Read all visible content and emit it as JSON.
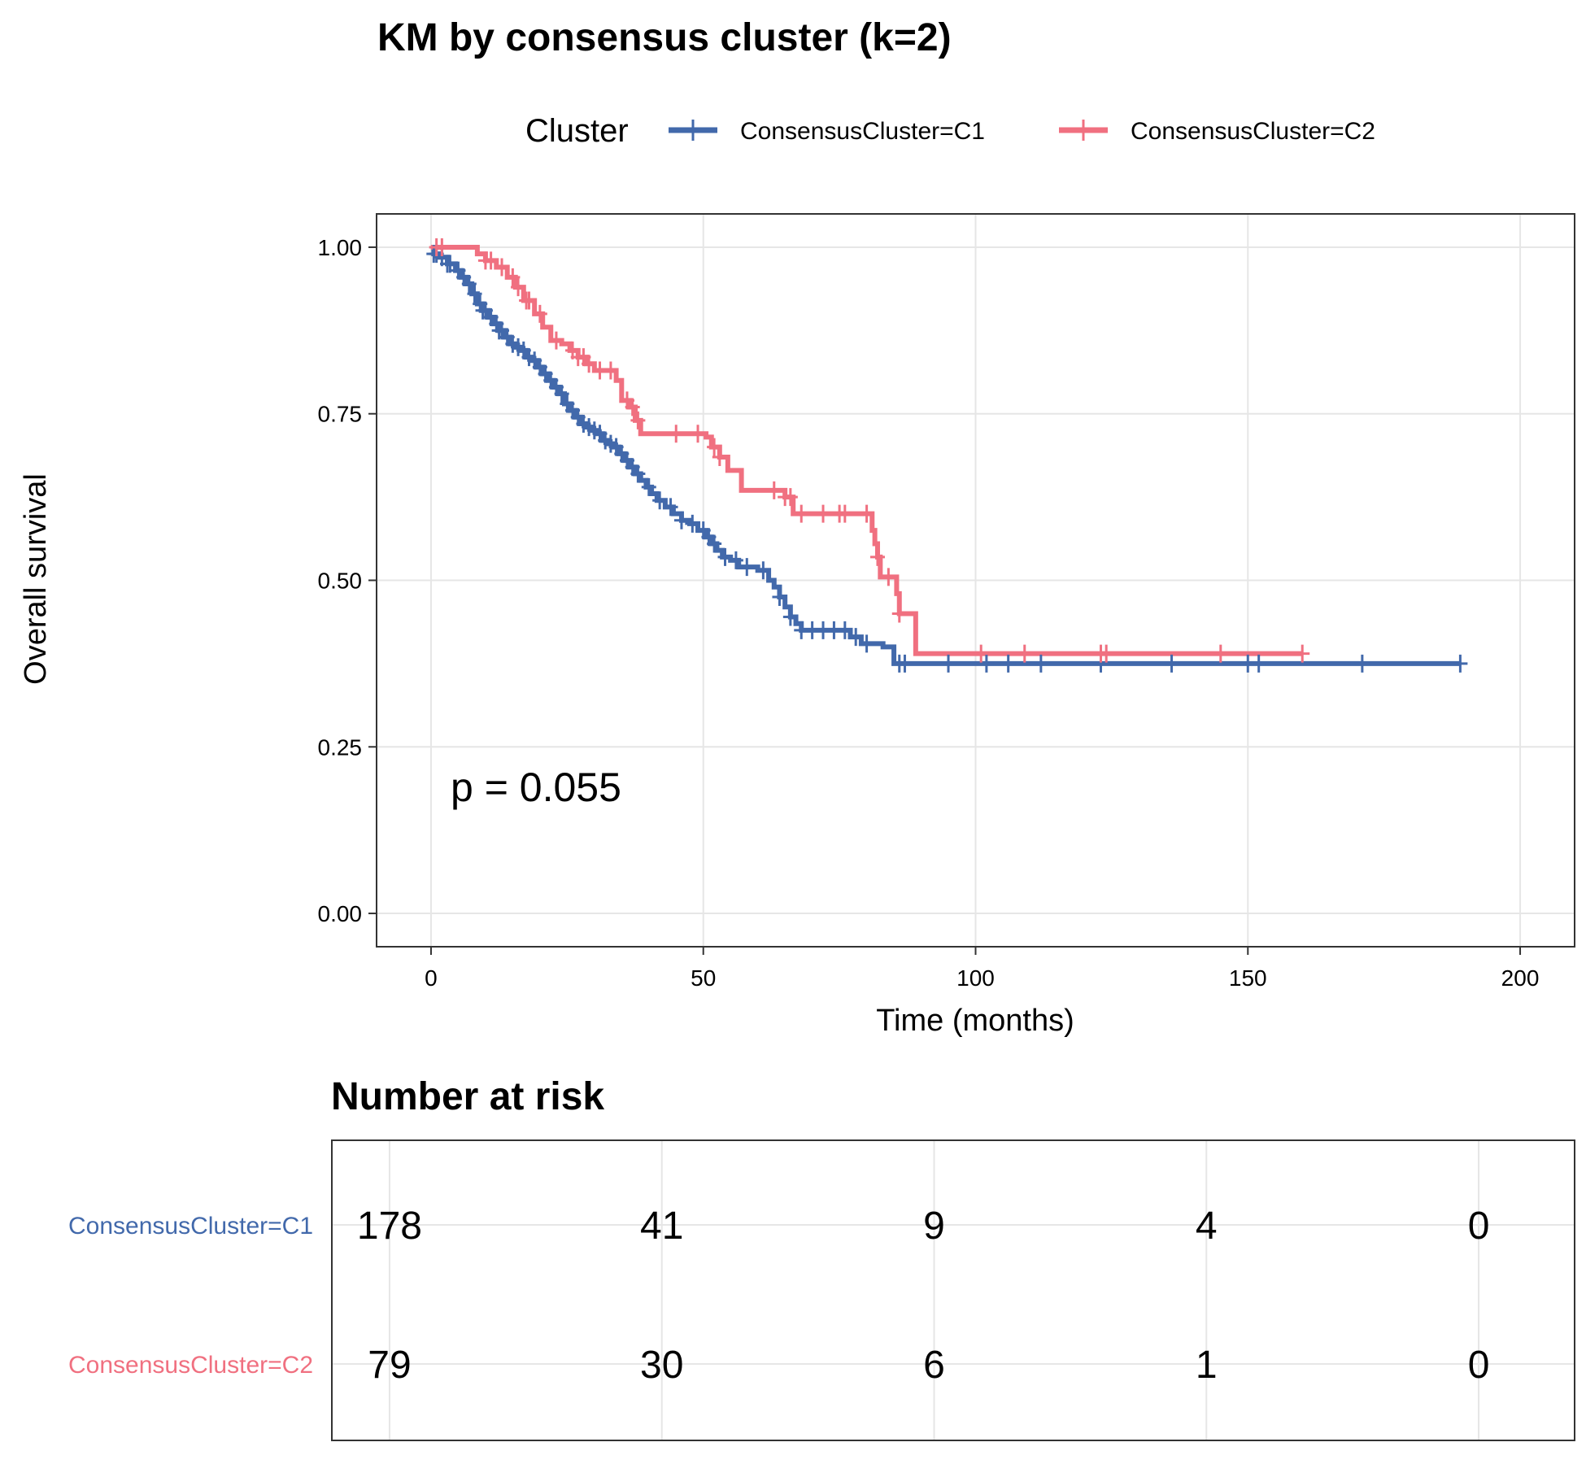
{
  "chart_data": {
    "type": "line",
    "subtype": "kaplan-meier",
    "title": "KM by consensus cluster (k=2)",
    "xlabel": "Time (months)",
    "ylabel": "Overall survival",
    "xlim": [
      -10,
      210
    ],
    "ylim": [
      -0.05,
      1.05
    ],
    "x_ticks": [
      0,
      50,
      100,
      150,
      200
    ],
    "x_tick_labels": [
      "0",
      "50",
      "100",
      "150",
      "200"
    ],
    "y_ticks": [
      0,
      0.25,
      0.5,
      0.75,
      1
    ],
    "y_tick_labels": [
      "0.00",
      "0.25",
      "0.50",
      "0.75",
      "1.00"
    ],
    "grid": true,
    "legend": {
      "title": "Cluster",
      "position": "top"
    },
    "annotation": "p = 0.055",
    "series": [
      {
        "name": "ConsensusCluster=C1",
        "color": "#4269ab",
        "steps": [
          [
            0,
            1.0
          ],
          [
            0.5,
            0.99
          ],
          [
            1.5,
            0.985
          ],
          [
            3,
            0.975
          ],
          [
            4.5,
            0.965
          ],
          [
            5.5,
            0.955
          ],
          [
            6.5,
            0.945
          ],
          [
            7.5,
            0.93
          ],
          [
            8.5,
            0.915
          ],
          [
            9.5,
            0.905
          ],
          [
            10.5,
            0.895
          ],
          [
            11.5,
            0.885
          ],
          [
            12.5,
            0.875
          ],
          [
            13.5,
            0.865
          ],
          [
            14.5,
            0.855
          ],
          [
            15.5,
            0.85
          ],
          [
            16.5,
            0.845
          ],
          [
            17.5,
            0.835
          ],
          [
            18.5,
            0.83
          ],
          [
            19.5,
            0.82
          ],
          [
            20.5,
            0.81
          ],
          [
            21.5,
            0.8
          ],
          [
            22.5,
            0.79
          ],
          [
            23.5,
            0.78
          ],
          [
            24.5,
            0.765
          ],
          [
            25.5,
            0.755
          ],
          [
            26.5,
            0.745
          ],
          [
            27.5,
            0.735
          ],
          [
            28.5,
            0.73
          ],
          [
            29.5,
            0.725
          ],
          [
            30.5,
            0.72
          ],
          [
            31.5,
            0.71
          ],
          [
            32.5,
            0.705
          ],
          [
            33.5,
            0.7
          ],
          [
            34.5,
            0.69
          ],
          [
            35.5,
            0.68
          ],
          [
            36.5,
            0.67
          ],
          [
            37.5,
            0.66
          ],
          [
            38.5,
            0.65
          ],
          [
            39.5,
            0.64
          ],
          [
            40.5,
            0.63
          ],
          [
            41.5,
            0.62
          ],
          [
            43,
            0.61
          ],
          [
            44.5,
            0.6
          ],
          [
            46,
            0.59
          ],
          [
            47.5,
            0.585
          ],
          [
            49,
            0.575
          ],
          [
            50.5,
            0.565
          ],
          [
            51.5,
            0.555
          ],
          [
            52.5,
            0.545
          ],
          [
            53.5,
            0.535
          ],
          [
            55,
            0.53
          ],
          [
            56.5,
            0.52
          ],
          [
            60,
            0.515
          ],
          [
            62,
            0.5
          ],
          [
            63,
            0.49
          ],
          [
            64,
            0.475
          ],
          [
            65,
            0.46
          ],
          [
            66,
            0.445
          ],
          [
            67,
            0.435
          ],
          [
            68,
            0.425
          ],
          [
            77,
            0.415
          ],
          [
            79,
            0.405
          ],
          [
            83,
            0.4
          ],
          [
            85,
            0.375
          ],
          [
            189,
            0.375
          ]
        ],
        "censor_times": [
          0.5,
          1,
          2,
          3,
          3.5,
          5,
          6,
          7,
          8,
          9,
          9.5,
          10,
          11,
          12,
          12.5,
          13,
          14,
          15,
          16,
          17,
          18,
          19,
          20,
          21,
          22,
          23,
          24,
          25,
          26,
          27,
          28,
          29,
          30,
          31,
          32,
          33,
          34,
          35,
          36,
          37,
          38,
          40,
          42,
          44,
          46,
          48,
          50,
          51,
          52,
          54,
          56,
          58,
          61,
          64,
          66,
          68,
          70,
          72,
          74,
          76,
          78,
          80,
          86,
          87,
          95,
          102,
          106,
          112,
          123,
          136,
          150,
          152,
          171,
          189
        ],
        "risk_table": [
          "178",
          "41",
          "9",
          "4",
          "0"
        ]
      },
      {
        "name": "ConsensusCluster=C2",
        "color": "#f07080",
        "steps": [
          [
            0,
            1.0
          ],
          [
            8.5,
            0.99
          ],
          [
            10,
            0.98
          ],
          [
            12,
            0.97
          ],
          [
            14,
            0.955
          ],
          [
            15.5,
            0.94
          ],
          [
            17,
            0.92
          ],
          [
            19,
            0.9
          ],
          [
            20.5,
            0.88
          ],
          [
            22,
            0.86
          ],
          [
            24,
            0.855
          ],
          [
            25.5,
            0.845
          ],
          [
            27,
            0.835
          ],
          [
            28.5,
            0.825
          ],
          [
            30,
            0.815
          ],
          [
            34,
            0.8
          ],
          [
            35,
            0.77
          ],
          [
            36.5,
            0.76
          ],
          [
            37.5,
            0.74
          ],
          [
            38.5,
            0.72
          ],
          [
            50.5,
            0.715
          ],
          [
            51.5,
            0.7
          ],
          [
            53,
            0.685
          ],
          [
            54.5,
            0.665
          ],
          [
            57,
            0.635
          ],
          [
            65,
            0.625
          ],
          [
            66.5,
            0.6
          ],
          [
            81,
            0.575
          ],
          [
            81.5,
            0.555
          ],
          [
            82,
            0.535
          ],
          [
            82.5,
            0.505
          ],
          [
            85.5,
            0.48
          ],
          [
            86,
            0.45
          ],
          [
            89,
            0.39
          ],
          [
            160,
            0.39
          ]
        ],
        "censor_times": [
          1,
          2,
          10,
          11,
          13,
          15,
          16,
          17.5,
          18,
          20,
          23,
          26,
          27,
          28,
          29,
          31,
          33,
          36,
          37,
          38,
          45,
          49,
          52,
          53,
          63,
          65,
          66,
          68,
          72,
          75,
          76,
          80,
          82,
          84,
          86,
          101,
          109,
          123,
          124,
          145,
          160
        ],
        "risk_table": [
          "79",
          "30",
          "6",
          "1",
          "0"
        ]
      }
    ],
    "risk_table": {
      "title": "Number at risk",
      "times": [
        0,
        50,
        100,
        150,
        200
      ]
    }
  }
}
